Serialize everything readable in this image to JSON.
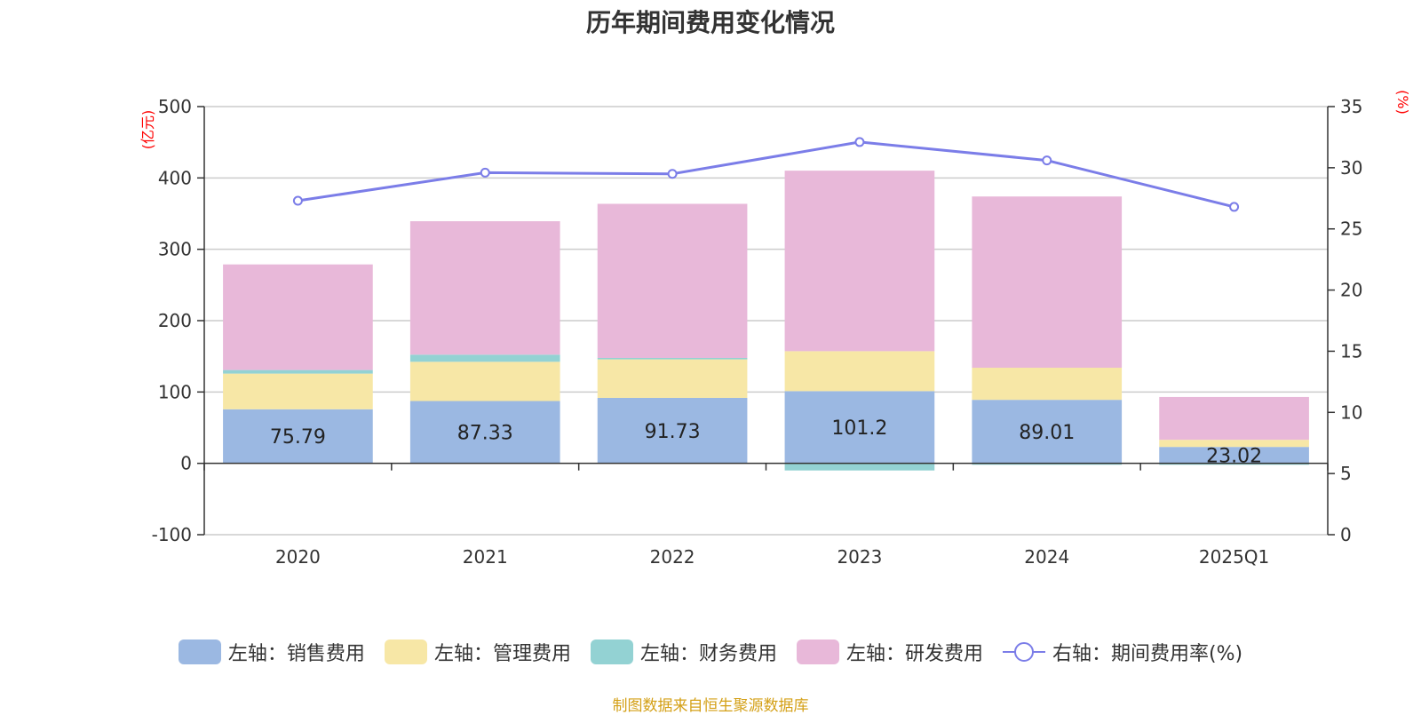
{
  "chart_data": {
    "type": "bar",
    "title": "历年期间费用变化情况",
    "categories": [
      "2020",
      "2021",
      "2022",
      "2023",
      "2024",
      "2025Q1"
    ],
    "left_axis": {
      "unit": "(亿元)",
      "ylim": [
        -100,
        500
      ],
      "ticks": [
        -100,
        0,
        100,
        200,
        300,
        400,
        500
      ]
    },
    "right_axis": {
      "unit": "(%)",
      "ylim": [
        0,
        35
      ],
      "ticks": [
        0,
        5,
        10,
        15,
        20,
        25,
        30,
        35
      ]
    },
    "series": [
      {
        "name": "左轴：销售费用",
        "axis": "left",
        "stack": true,
        "color": "#9bb8e2",
        "values": [
          75.79,
          87.33,
          91.73,
          101.2,
          89.01,
          23.02
        ],
        "labels": [
          "75.79",
          "87.33",
          "91.73",
          "101.2",
          "89.01",
          "23.02"
        ]
      },
      {
        "name": "左轴：管理费用",
        "axis": "left",
        "stack": true,
        "color": "#f7e7a6",
        "values": [
          50,
          55,
          54,
          56,
          45,
          10
        ]
      },
      {
        "name": "左轴：财务费用",
        "axis": "left",
        "stack": true,
        "color": "#93d2d3",
        "values": [
          5,
          10,
          2,
          -10,
          -2,
          -2
        ]
      },
      {
        "name": "左轴：研发费用",
        "axis": "left",
        "stack": true,
        "color": "#e8b8d9",
        "values": [
          148,
          187,
          216,
          253,
          240,
          60
        ]
      },
      {
        "name": "右轴：期间费用率(%)",
        "axis": "right",
        "type": "line",
        "color": "#7b7de8",
        "values": [
          27.3,
          29.6,
          29.5,
          32.1,
          30.6,
          26.8
        ]
      }
    ],
    "grid": true,
    "legend_position": "bottom"
  },
  "source": "制图数据来自恒生聚源数据库"
}
